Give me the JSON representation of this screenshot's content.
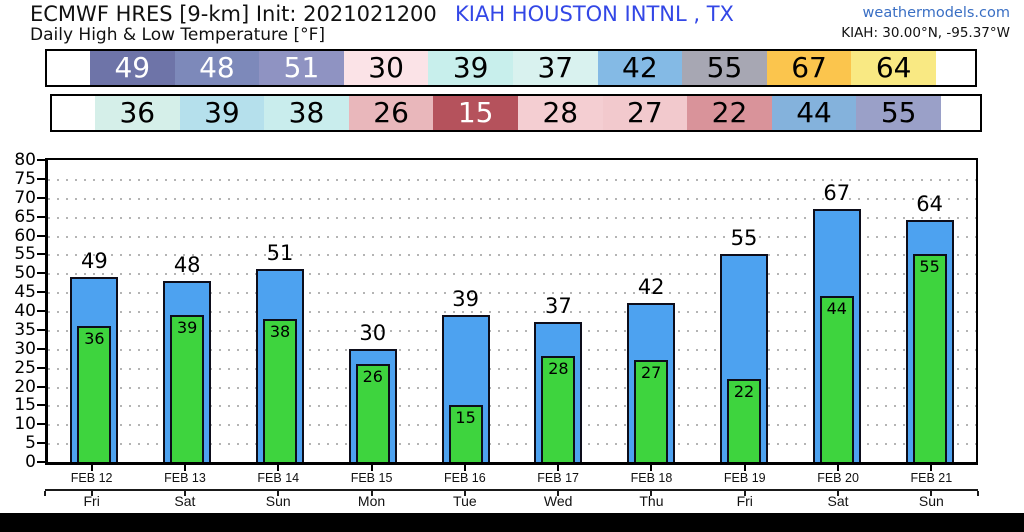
{
  "header": {
    "title": "ECMWF HRES [9-km] Init: 2021021200",
    "station": "KIAH HOUSTON INTNL , TX",
    "subtitle": "Daily High & Low Temperature [°F]",
    "site": "weathermodels.com",
    "coords": "KIAH: 30.00°N, -95.37°W"
  },
  "colors": {
    "station_blue": "#3347e6",
    "site_blue": "#3a6fc4",
    "high_bar": "#4da2f0",
    "low_bar": "#3ed43e",
    "bar_border": "#0d0d1a",
    "grid_gray": "#b4b4b4"
  },
  "high_strip": [
    {
      "value": "49",
      "bg": "#6e74a8",
      "fg": "#ffffff"
    },
    {
      "value": "48",
      "bg": "#7d89ba",
      "fg": "#ffffff"
    },
    {
      "value": "51",
      "bg": "#8f93c2",
      "fg": "#ffffff"
    },
    {
      "value": "30",
      "bg": "#fbe3e7",
      "fg": "#000000"
    },
    {
      "value": "39",
      "bg": "#c8efec",
      "fg": "#000000"
    },
    {
      "value": "37",
      "bg": "#d9f2ef",
      "fg": "#000000"
    },
    {
      "value": "42",
      "bg": "#84bae5",
      "fg": "#000000"
    },
    {
      "value": "55",
      "bg": "#a7a7b3",
      "fg": "#000000"
    },
    {
      "value": "67",
      "bg": "#fbc54d",
      "fg": "#000000"
    },
    {
      "value": "64",
      "bg": "#f9e983",
      "fg": "#000000"
    }
  ],
  "low_strip": [
    {
      "value": "36",
      "bg": "#d5efe9",
      "fg": "#000000"
    },
    {
      "value": "39",
      "bg": "#b5e0ec",
      "fg": "#000000"
    },
    {
      "value": "38",
      "bg": "#c9eded",
      "fg": "#000000"
    },
    {
      "value": "26",
      "bg": "#e9b7bb",
      "fg": "#000000"
    },
    {
      "value": "15",
      "bg": "#b5525c",
      "fg": "#ffffff"
    },
    {
      "value": "28",
      "bg": "#f4ced2",
      "fg": "#000000"
    },
    {
      "value": "27",
      "bg": "#f2c9cd",
      "fg": "#000000"
    },
    {
      "value": "22",
      "bg": "#d9939a",
      "fg": "#000000"
    },
    {
      "value": "44",
      "bg": "#84b2dc",
      "fg": "#000000"
    },
    {
      "value": "55",
      "bg": "#9aa0c8",
      "fg": "#000000"
    }
  ],
  "chart_data": {
    "type": "bar",
    "title": "Daily High & Low Temperature [°F]",
    "categories": [
      "FEB 12",
      "FEB 13",
      "FEB 14",
      "FEB 15",
      "FEB 16",
      "FEB 17",
      "FEB 18",
      "FEB 19",
      "FEB 20",
      "FEB 21"
    ],
    "weekdays": [
      "Fri",
      "Sat",
      "Sun",
      "Mon",
      "Tue",
      "Wed",
      "Thu",
      "Fri",
      "Sat",
      "Sun"
    ],
    "series": [
      {
        "name": "Daily High",
        "color": "#4da2f0",
        "values": [
          49,
          48,
          51,
          30,
          39,
          37,
          42,
          55,
          67,
          64
        ]
      },
      {
        "name": "Daily Low",
        "color": "#3ed43e",
        "values": [
          36,
          39,
          38,
          26,
          15,
          28,
          27,
          22,
          44,
          55
        ]
      }
    ],
    "xlabel": "",
    "ylabel": "",
    "ylim": [
      0,
      80
    ],
    "ytick_step": 5,
    "grid": "dotted horizontal every 5",
    "legend_position": "none"
  }
}
